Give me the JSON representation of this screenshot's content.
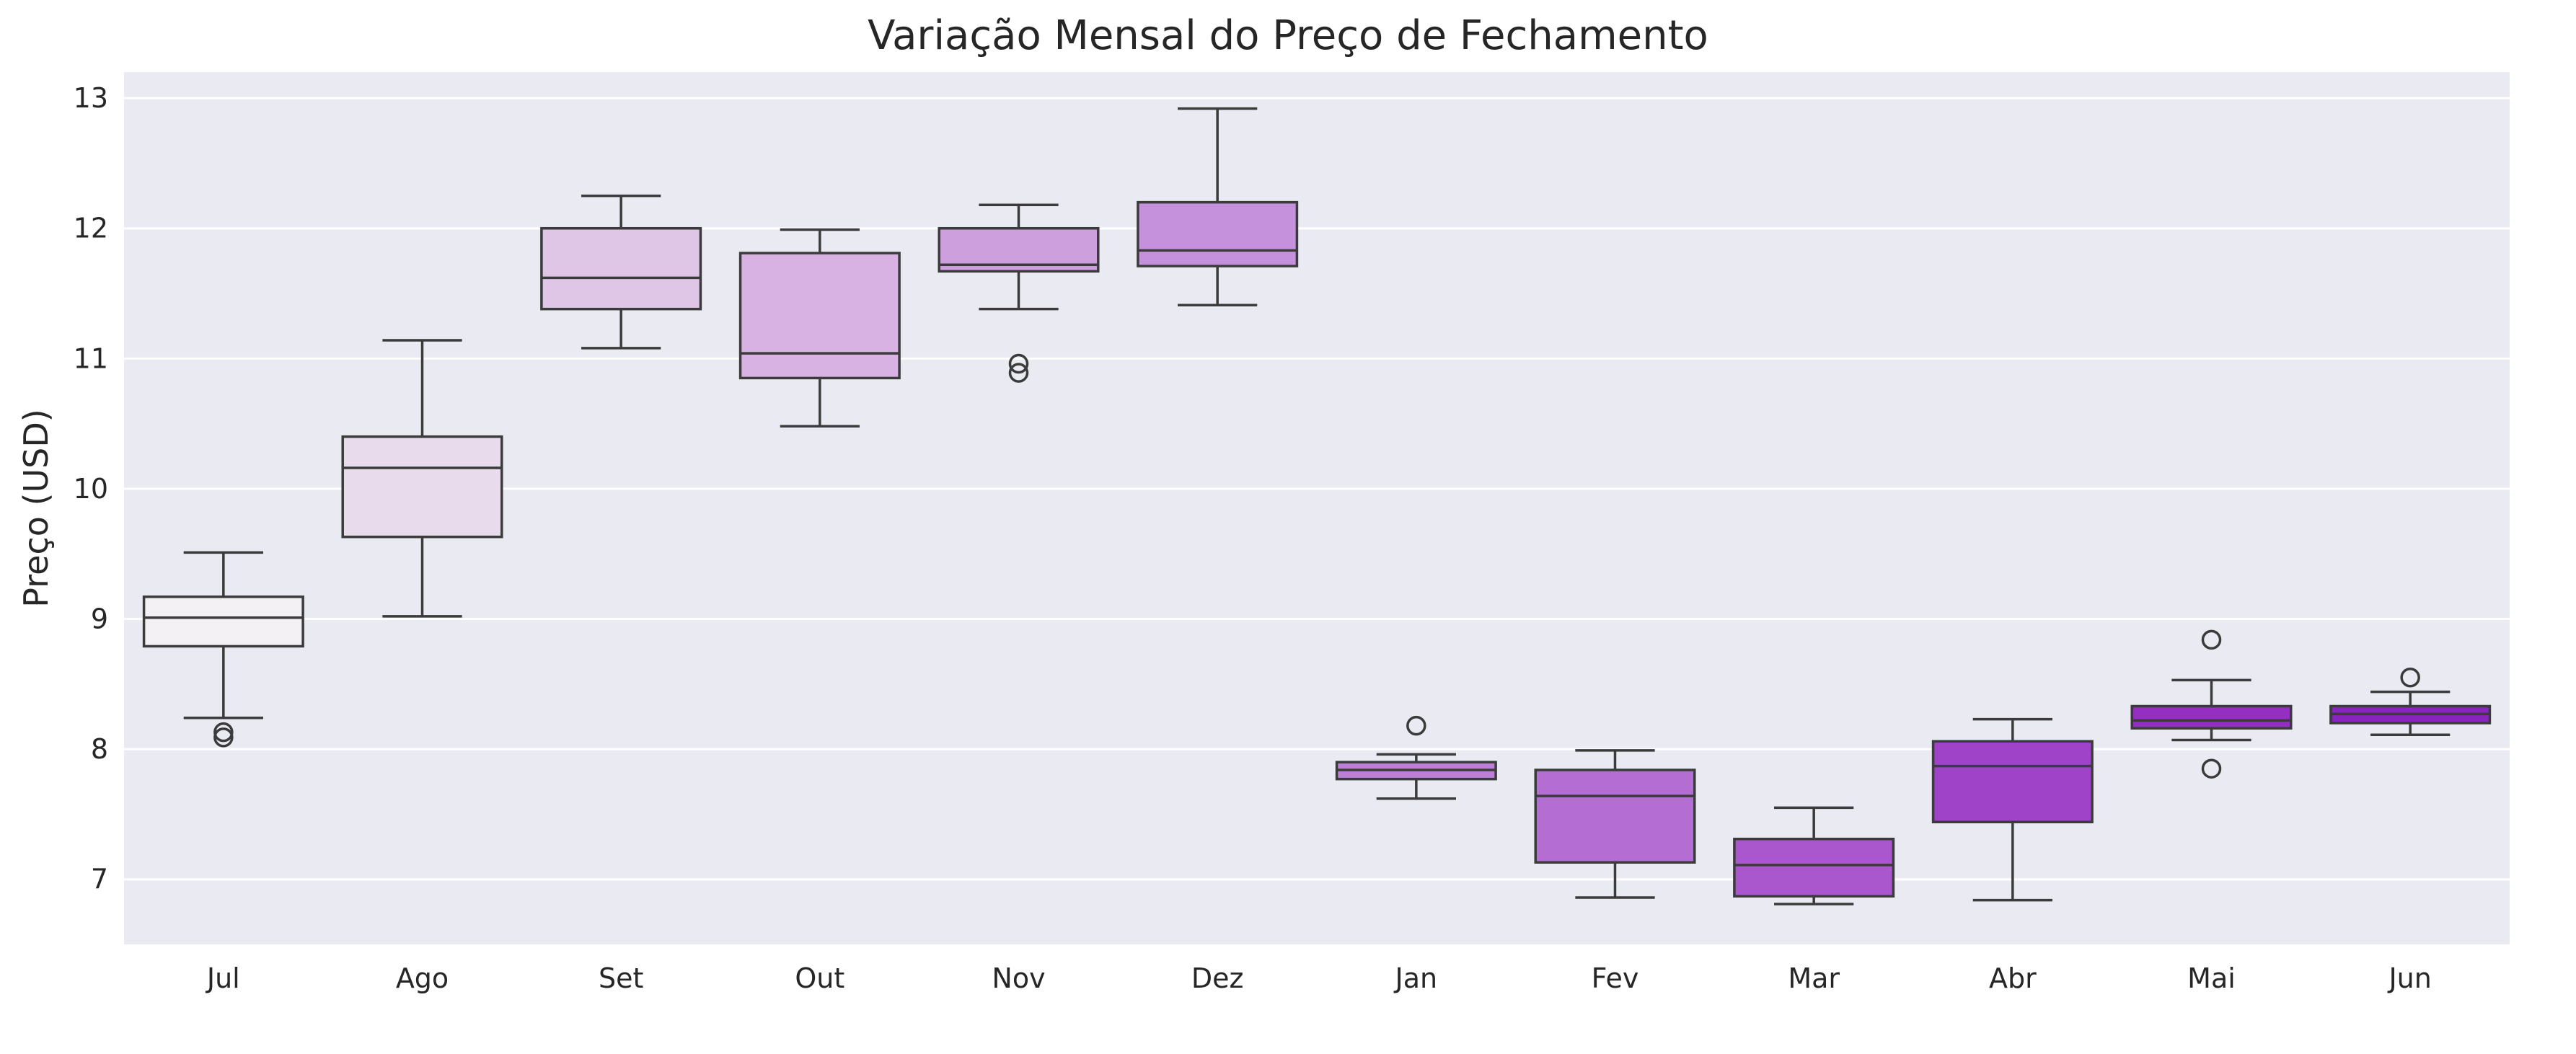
{
  "chart_data": {
    "type": "boxplot",
    "title": "Variação Mensal do Preço de Fechamento",
    "xlabel": "",
    "ylabel": "Preço (USD)",
    "ylim": [
      6.5,
      13.2
    ],
    "yticks": [
      7,
      8,
      9,
      10,
      11,
      12,
      13
    ],
    "grid": true,
    "categories": [
      "Jul",
      "Ago",
      "Set",
      "Out",
      "Nov",
      "Dez",
      "Jan",
      "Fev",
      "Mar",
      "Abr",
      "Mai",
      "Jun"
    ],
    "boxes": [
      {
        "min": 8.24,
        "q1": 8.79,
        "median": 9.01,
        "q3": 9.17,
        "max": 9.51,
        "outliers": [
          8.13,
          8.09
        ],
        "color": "#f3f1f4"
      },
      {
        "min": 9.02,
        "q1": 9.63,
        "median": 10.16,
        "q3": 10.4,
        "max": 11.14,
        "outliers": [],
        "color": "#e8dcec"
      },
      {
        "min": 11.08,
        "q1": 11.38,
        "median": 11.62,
        "q3": 12.0,
        "max": 12.25,
        "outliers": [],
        "color": "#dfc5e6"
      },
      {
        "min": 10.48,
        "q1": 10.85,
        "median": 11.04,
        "q3": 11.81,
        "max": 11.99,
        "outliers": [],
        "color": "#d7b2e2"
      },
      {
        "min": 11.38,
        "q1": 11.67,
        "median": 11.72,
        "q3": 12.0,
        "max": 12.18,
        "outliers": [
          10.96,
          10.89
        ],
        "color": "#ce9fdd"
      },
      {
        "min": 11.41,
        "q1": 11.71,
        "median": 11.83,
        "q3": 12.2,
        "max": 12.92,
        "outliers": [],
        "color": "#c691dc"
      },
      {
        "min": 7.62,
        "q1": 7.77,
        "median": 7.84,
        "q3": 7.9,
        "max": 7.96,
        "outliers": [
          8.18
        ],
        "color": "#bd7fd7"
      },
      {
        "min": 6.86,
        "q1": 7.13,
        "median": 7.64,
        "q3": 7.84,
        "max": 7.99,
        "outliers": [],
        "color": "#b36dd3"
      },
      {
        "min": 6.81,
        "q1": 6.87,
        "median": 7.11,
        "q3": 7.31,
        "max": 7.55,
        "outliers": [],
        "color": "#aa56cd"
      },
      {
        "min": 6.84,
        "q1": 7.44,
        "median": 7.87,
        "q3": 8.06,
        "max": 8.23,
        "outliers": [],
        "color": "#9f43c8"
      },
      {
        "min": 8.07,
        "q1": 8.16,
        "median": 8.22,
        "q3": 8.33,
        "max": 8.53,
        "outliers": [
          8.84,
          7.85
        ],
        "color": "#952fc4"
      },
      {
        "min": 8.11,
        "q1": 8.2,
        "median": 8.27,
        "q3": 8.33,
        "max": 8.44,
        "outliers": [
          8.55
        ],
        "color": "#8a24be"
      }
    ]
  }
}
